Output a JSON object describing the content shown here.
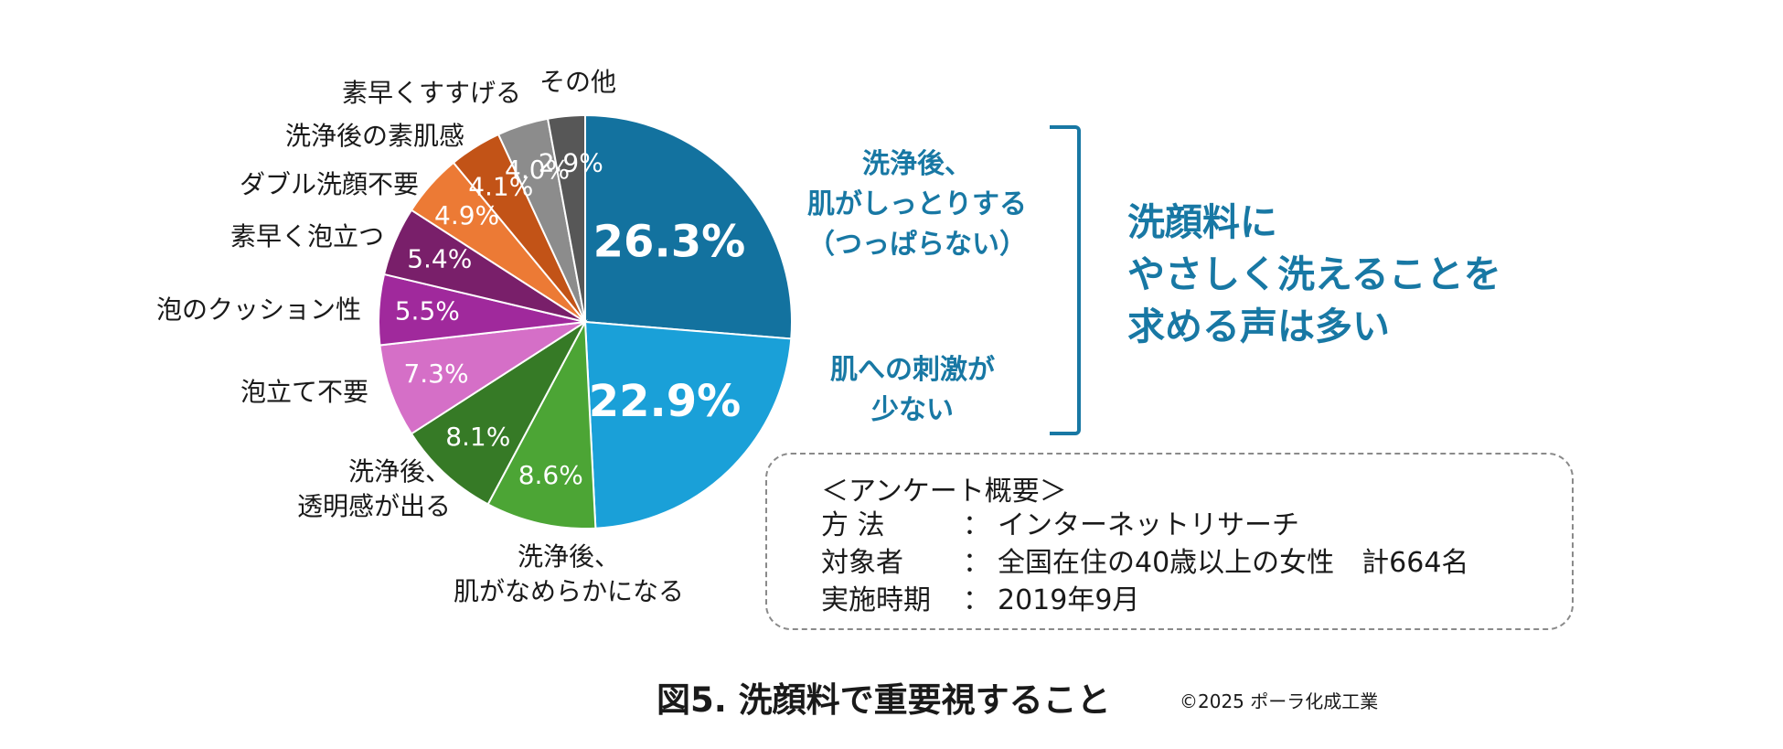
{
  "chart_data": {
    "type": "pie",
    "title": "図5. 洗顔料で重要視すること",
    "start": "12 o'clock, clockwise",
    "slices": [
      {
        "label": "洗浄後、肌がしっとりする（つっぱらない）",
        "value": 26.3,
        "value_label": "26.3%",
        "color": "#13729f"
      },
      {
        "label": "肌への刺激が少ない",
        "value": 22.9,
        "value_label": "22.9%",
        "color": "#1aa0d8"
      },
      {
        "label": "洗浄後、肌がなめらかになる",
        "value": 8.6,
        "value_label": "8.6%",
        "color": "#4ca535"
      },
      {
        "label": "洗浄後、透明感が出る",
        "value": 8.1,
        "value_label": "8.1%",
        "color": "#367a26"
      },
      {
        "label": "泡立て不要",
        "value": 7.3,
        "value_label": "7.3%",
        "color": "#d56fc7"
      },
      {
        "label": "泡のクッション性",
        "value": 5.5,
        "value_label": "5.5%",
        "color": "#a0299c"
      },
      {
        "label": "素早く泡立つ",
        "value": 5.4,
        "value_label": "5.4%",
        "color": "#791f6a"
      },
      {
        "label": "ダブル洗顔不要",
        "value": 4.9,
        "value_label": "4.9%",
        "color": "#ec7a35"
      },
      {
        "label": "洗浄後の素肌感",
        "value": 4.1,
        "value_label": "4.1%",
        "color": "#c25317"
      },
      {
        "label": "素早くすすげる",
        "value": 4.0,
        "value_label": "4.0%",
        "color": "#8c8c8c"
      },
      {
        "label": "その他",
        "value": 2.9,
        "value_label": "2.9%",
        "color": "#575757"
      }
    ],
    "outside_labels": [
      [
        "洗浄後、",
        "肌がなめらかになる"
      ],
      [
        "洗浄後、",
        "透明感が出る"
      ],
      [
        "泡立て不要"
      ],
      [
        "泡のクッション性"
      ],
      [
        "素早く泡立つ"
      ],
      [
        "ダブル洗顔不要"
      ],
      [
        "洗浄後の素肌感"
      ],
      [
        "素早くすすげる"
      ],
      [
        "その他"
      ]
    ]
  },
  "highlights": {
    "top": [
      "洗浄後、",
      "肌がしっとりする",
      "（つっぱらない）"
    ],
    "bottom": [
      "肌への刺激が",
      "少ない"
    ]
  },
  "conclusion": [
    "洗顔料に",
    "やさしく洗えることを",
    "求める声は多い"
  ],
  "survey": {
    "title": "＜アンケート概要＞",
    "rows": [
      {
        "key": "方 法",
        "colon": "：",
        "value": "インターネットリサーチ"
      },
      {
        "key": "対象者",
        "colon": "：",
        "value": "全国在住の40歳以上の女性　計664名"
      },
      {
        "key": "実施時期",
        "colon": "：",
        "value": "2019年9月"
      }
    ]
  },
  "footer": {
    "figure_title": "図5. 洗顔料で重要視すること",
    "copyright": "©2025 ポーラ化成工業"
  },
  "colors": {
    "accent": "#1878a4"
  }
}
